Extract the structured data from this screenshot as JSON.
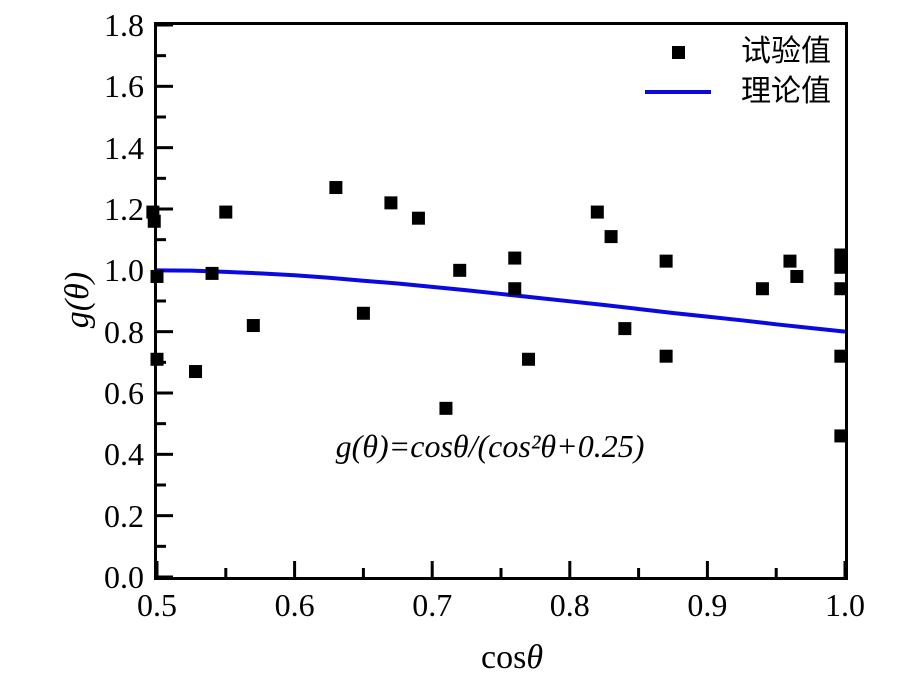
{
  "figure": {
    "background": "#ffffff",
    "frame_color": "#000000"
  },
  "chart_data": {
    "type": "scatter",
    "title": "",
    "xlabel": "cosθ",
    "xlabel_roman": "cos",
    "xlabel_symbol": "θ",
    "ylabel": "g(θ)",
    "xlim": [
      0.5,
      1.0
    ],
    "ylim": [
      0.0,
      1.8
    ],
    "grid": false,
    "legend_position": "top-right-inside",
    "x_major_ticks": [
      0.5,
      0.6,
      0.7,
      0.8,
      0.9,
      1.0
    ],
    "x_tick_labels": [
      "0.5",
      "0.6",
      "0.7",
      "0.8",
      "0.9",
      "1.0"
    ],
    "x_minor_ticks": [
      0.55,
      0.65,
      0.75,
      0.85,
      0.95
    ],
    "y_major_ticks": [
      0.0,
      0.2,
      0.4,
      0.6,
      0.8,
      1.0,
      1.2,
      1.4,
      1.6,
      1.8
    ],
    "y_tick_labels": [
      "0.0",
      "0.2",
      "0.4",
      "0.6",
      "0.8",
      "1.0",
      "1.2",
      "1.4",
      "1.6",
      "1.8"
    ],
    "y_minor_ticks": [
      0.1,
      0.3,
      0.5,
      0.7,
      0.9,
      1.1,
      1.3,
      1.5,
      1.7
    ],
    "annotation": "g(θ)=cosθ/(cos²θ+0.25)",
    "legend": {
      "entries": [
        {
          "label": "试验值",
          "type": "square-marker",
          "color": "#000000"
        },
        {
          "label": "理论值",
          "type": "line",
          "color": "#0a0ae0"
        }
      ]
    },
    "series": [
      {
        "name": "试验值",
        "type": "scatter",
        "marker": "square",
        "marker_size": 13,
        "color": "#000000",
        "points": [
          [
            0.497,
            1.19
          ],
          [
            0.498,
            1.16
          ],
          [
            0.5,
            0.98
          ],
          [
            0.5,
            0.71
          ],
          [
            0.528,
            0.67
          ],
          [
            0.54,
            0.99
          ],
          [
            0.55,
            1.19
          ],
          [
            0.57,
            0.82
          ],
          [
            0.63,
            1.27
          ],
          [
            0.65,
            0.86
          ],
          [
            0.67,
            1.22
          ],
          [
            0.69,
            1.17
          ],
          [
            0.71,
            0.55
          ],
          [
            0.72,
            1.0
          ],
          [
            0.76,
            1.04
          ],
          [
            0.76,
            0.94
          ],
          [
            0.77,
            0.71
          ],
          [
            0.82,
            1.19
          ],
          [
            0.83,
            1.11
          ],
          [
            0.84,
            0.81
          ],
          [
            0.87,
            1.03
          ],
          [
            0.87,
            0.72
          ],
          [
            0.94,
            0.94
          ],
          [
            0.96,
            1.03
          ],
          [
            0.965,
            0.98
          ],
          [
            0.997,
            1.05
          ],
          [
            0.997,
            1.01
          ],
          [
            0.997,
            0.94
          ],
          [
            0.997,
            0.72
          ],
          [
            0.997,
            0.46
          ]
        ]
      },
      {
        "name": "理论值",
        "type": "line",
        "color": "#0a0ae0",
        "line_width": 4,
        "formula": "g(θ)=cosθ/(cos²θ+0.25)",
        "points": [
          [
            0.5,
            1.0
          ],
          [
            0.525,
            0.999
          ],
          [
            0.55,
            0.995
          ],
          [
            0.575,
            0.99
          ],
          [
            0.6,
            0.984
          ],
          [
            0.625,
            0.976
          ],
          [
            0.65,
            0.966
          ],
          [
            0.675,
            0.957
          ],
          [
            0.7,
            0.946
          ],
          [
            0.725,
            0.935
          ],
          [
            0.75,
            0.923
          ],
          [
            0.775,
            0.911
          ],
          [
            0.8,
            0.899
          ],
          [
            0.825,
            0.887
          ],
          [
            0.85,
            0.874
          ],
          [
            0.875,
            0.861
          ],
          [
            0.9,
            0.849
          ],
          [
            0.925,
            0.837
          ],
          [
            0.95,
            0.824
          ],
          [
            0.975,
            0.812
          ],
          [
            1.0,
            0.8
          ]
        ]
      }
    ]
  }
}
